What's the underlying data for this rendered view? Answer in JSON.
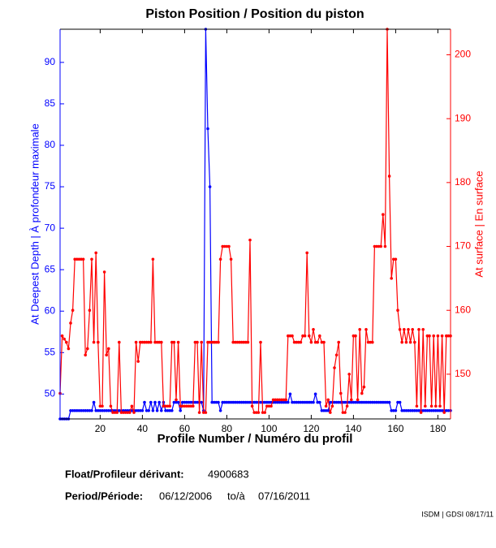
{
  "chart_data": {
    "type": "line",
    "title": "Piston Position / Position du piston",
    "xlabel": "Profile Number / Numéro du profil",
    "ylabel": "At Deepest Depth | À profondeur maximale",
    "y2label": "At surface | En surface",
    "xlim": [
      1,
      186
    ],
    "xticks": [
      20,
      40,
      60,
      80,
      100,
      120,
      140,
      160,
      180
    ],
    "ylim": [
      47,
      94
    ],
    "yticks": [
      50,
      55,
      60,
      65,
      70,
      75,
      80,
      85,
      90
    ],
    "y2lim": [
      143,
      204
    ],
    "y2ticks": [
      150,
      160,
      170,
      180,
      190,
      200
    ],
    "x": [
      1,
      2,
      3,
      4,
      5,
      6,
      7,
      8,
      9,
      10,
      11,
      12,
      13,
      14,
      15,
      16,
      17,
      18,
      19,
      20,
      21,
      22,
      23,
      24,
      25,
      26,
      27,
      28,
      29,
      30,
      31,
      32,
      33,
      34,
      35,
      36,
      37,
      38,
      39,
      40,
      41,
      42,
      43,
      44,
      45,
      46,
      47,
      48,
      49,
      50,
      51,
      52,
      53,
      54,
      55,
      56,
      57,
      58,
      59,
      60,
      61,
      62,
      63,
      64,
      65,
      66,
      67,
      68,
      69,
      70,
      71,
      72,
      73,
      74,
      75,
      76,
      77,
      78,
      79,
      80,
      81,
      82,
      83,
      84,
      85,
      86,
      87,
      88,
      89,
      90,
      91,
      92,
      93,
      94,
      95,
      96,
      97,
      98,
      99,
      100,
      101,
      102,
      103,
      104,
      105,
      106,
      107,
      108,
      109,
      110,
      111,
      112,
      113,
      114,
      115,
      116,
      117,
      118,
      119,
      120,
      121,
      122,
      123,
      124,
      125,
      126,
      127,
      128,
      129,
      130,
      131,
      132,
      133,
      134,
      135,
      136,
      137,
      138,
      139,
      140,
      141,
      142,
      143,
      144,
      145,
      146,
      147,
      148,
      149,
      150,
      151,
      152,
      153,
      154,
      155,
      156,
      157,
      158,
      159,
      160,
      161,
      162,
      163,
      164,
      165,
      166,
      167,
      168,
      169,
      170,
      171,
      172,
      173,
      174,
      175,
      176,
      177,
      178,
      179,
      180,
      181,
      182,
      183,
      184,
      185,
      186
    ],
    "series": [
      {
        "color": "#0000ff",
        "values": [
          47,
          47,
          47,
          47,
          47,
          48,
          48,
          48,
          48,
          48,
          48,
          48,
          48,
          48,
          48,
          48,
          49,
          48,
          48,
          48,
          48,
          48,
          48,
          48,
          48,
          48,
          48,
          48,
          48,
          48,
          48,
          48,
          48,
          48,
          48,
          48,
          48,
          48,
          48,
          48,
          49,
          48,
          48,
          49,
          48,
          49,
          48,
          49,
          48,
          49,
          48,
          48,
          48,
          48,
          49,
          49,
          49,
          48,
          49,
          49,
          49,
          49,
          49,
          49,
          49,
          49,
          49,
          49,
          48,
          94,
          82,
          75,
          49,
          49,
          49,
          49,
          48,
          49,
          49,
          49,
          49,
          49,
          49,
          49,
          49,
          49,
          49,
          49,
          49,
          49,
          49,
          49,
          49,
          49,
          49,
          49,
          49,
          49,
          49,
          49,
          49,
          49,
          49,
          49,
          49,
          49,
          49,
          49,
          49,
          50,
          49,
          49,
          49,
          49,
          49,
          49,
          49,
          49,
          49,
          49,
          49,
          50,
          49,
          49,
          48,
          48,
          48,
          48,
          49,
          49,
          49,
          49,
          49,
          49,
          49,
          49,
          49,
          49,
          49,
          49,
          49,
          49,
          49,
          49,
          49,
          49,
          49,
          49,
          49,
          49,
          49,
          49,
          49,
          49,
          49,
          49,
          49,
          48,
          48,
          48,
          49,
          49,
          48,
          48,
          48,
          48,
          48,
          48,
          48,
          48,
          48,
          48,
          48,
          48,
          48,
          48,
          48,
          48,
          48,
          48,
          48,
          48,
          48,
          48,
          48,
          48
        ]
      },
      {
        "color": "#ff0000",
        "axis": "y2",
        "values": [
          147,
          156,
          155.5,
          155,
          154,
          158,
          160,
          168,
          168,
          168,
          168,
          168,
          153,
          154,
          160,
          168,
          155,
          169,
          155,
          145,
          145,
          166,
          153,
          154,
          145,
          144,
          144,
          144,
          155,
          144,
          144,
          144,
          144,
          144,
          145,
          144,
          155,
          152,
          155,
          155,
          155,
          155,
          155,
          155,
          168,
          155,
          155,
          155,
          155,
          145,
          145,
          145,
          145,
          155,
          155,
          146,
          155,
          145,
          145,
          145,
          145,
          145,
          145,
          145,
          155,
          155,
          144,
          155,
          144,
          144,
          155,
          155,
          155,
          155,
          155,
          155,
          168,
          170,
          170,
          170,
          170,
          168,
          155,
          155,
          155,
          155,
          155,
          155,
          155,
          155,
          171,
          145,
          144,
          144,
          144,
          155,
          144,
          144,
          145,
          145,
          145,
          146,
          146,
          146,
          146,
          146,
          146,
          146,
          156,
          156,
          156,
          155,
          155,
          155,
          155,
          156,
          156,
          169,
          156,
          155,
          157,
          155,
          155,
          156,
          155,
          155,
          145,
          146,
          144,
          145,
          151,
          153,
          155,
          147,
          144,
          144,
          145,
          150,
          146,
          156,
          156,
          146,
          157,
          147,
          148,
          157,
          155,
          155,
          155,
          170,
          170,
          170,
          170,
          175,
          170,
          204,
          181,
          165,
          168,
          168,
          160,
          157,
          155,
          157,
          155,
          157,
          155,
          157,
          155,
          145,
          157,
          144,
          157,
          145,
          156,
          156,
          145,
          156,
          145,
          156,
          145,
          156,
          144,
          156,
          156,
          156
        ]
      }
    ],
    "annotations": {
      "float_label": "Float/Profileur dérivant:",
      "float_id": "4900683",
      "period_label": "Period/Période:",
      "start_date": "06/12/2006",
      "to": "to/à",
      "end_date": "07/16/2011",
      "credit": "ISDM | GDSI 08/17/11"
    }
  }
}
